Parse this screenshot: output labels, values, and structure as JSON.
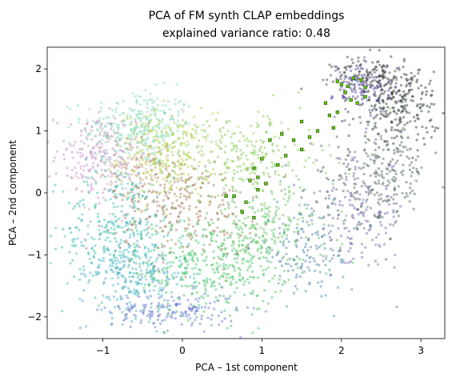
{
  "chart_data": {
    "type": "scatter",
    "title": "PCA of FM synth CLAP embeddings",
    "subtitle": "explained variance ratio: 0.48",
    "xlabel": "PCA – 1st component",
    "ylabel": "PCA – 2nd component",
    "xlim": [
      -1.7,
      3.3
    ],
    "ylim": [
      -2.35,
      2.35
    ],
    "xticks": [
      -1,
      0,
      1,
      2,
      3
    ],
    "yticks": [
      -2,
      -1,
      0,
      1,
      2
    ],
    "xtick_labels": [
      "−1",
      "0",
      "1",
      "2",
      "3"
    ],
    "ytick_labels": [
      "−2",
      "−1",
      "0",
      "1",
      "2"
    ],
    "grid": false,
    "legend": "none",
    "clusters": [
      {
        "color": "#7fd6b2",
        "center": [
          -0.55,
          1.05
        ],
        "spread": [
          0.35,
          0.3
        ],
        "weight": 1.2
      },
      {
        "color": "#b0cc3a",
        "center": [
          -0.2,
          0.6
        ],
        "spread": [
          0.3,
          0.35
        ],
        "weight": 1.0
      },
      {
        "color": "#c288c9",
        "center": [
          -1.1,
          0.6
        ],
        "spread": [
          0.25,
          0.35
        ],
        "weight": 0.6
      },
      {
        "color": "#c9a59a",
        "center": [
          -0.7,
          0.4
        ],
        "spread": [
          0.3,
          0.3
        ],
        "weight": 0.6
      },
      {
        "color": "#2fb8b0",
        "center": [
          -0.8,
          -0.6
        ],
        "spread": [
          0.35,
          0.55
        ],
        "weight": 1.3
      },
      {
        "color": "#3aa3c8",
        "center": [
          -0.6,
          -1.3
        ],
        "spread": [
          0.35,
          0.35
        ],
        "weight": 0.8
      },
      {
        "color": "#5a6fd0",
        "center": [
          -0.1,
          -1.9
        ],
        "spread": [
          0.4,
          0.15
        ],
        "weight": 0.6
      },
      {
        "color": "#34c05a",
        "center": [
          0.3,
          -1.2
        ],
        "spread": [
          0.45,
          0.4
        ],
        "weight": 1.3
      },
      {
        "color": "#a0704a",
        "center": [
          0.0,
          -0.2
        ],
        "spread": [
          0.45,
          0.4
        ],
        "weight": 1.0
      },
      {
        "color": "#7ec84a",
        "center": [
          0.8,
          0.6
        ],
        "spread": [
          0.5,
          0.35
        ],
        "weight": 0.9
      },
      {
        "color": "#4fbf4f",
        "center": [
          1.0,
          -0.6
        ],
        "spread": [
          0.45,
          0.4
        ],
        "weight": 1.0
      },
      {
        "color": "#3f7fa0",
        "center": [
          1.6,
          -0.9
        ],
        "spread": [
          0.35,
          0.35
        ],
        "weight": 0.6
      },
      {
        "color": "#6a5ca8",
        "center": [
          2.2,
          -0.3
        ],
        "spread": [
          0.3,
          0.45
        ],
        "weight": 0.7
      },
      {
        "color": "#3d5a46",
        "center": [
          2.5,
          0.3
        ],
        "spread": [
          0.3,
          0.4
        ],
        "weight": 0.8
      },
      {
        "color": "#1a2a22",
        "center": [
          2.7,
          1.4
        ],
        "spread": [
          0.25,
          0.3
        ],
        "weight": 0.9
      },
      {
        "color": "#4a3f9a",
        "center": [
          2.3,
          1.7
        ],
        "spread": [
          0.2,
          0.2
        ],
        "weight": 0.5
      },
      {
        "color": "#2c2c2c",
        "center": [
          2.4,
          1.9
        ],
        "spread": [
          0.25,
          0.15
        ],
        "weight": 0.5
      }
    ],
    "highlighted_points": [
      [
        1.95,
        1.8
      ],
      [
        2.0,
        1.75
      ],
      [
        2.08,
        1.72
      ],
      [
        2.15,
        1.85
      ],
      [
        2.25,
        1.82
      ],
      [
        2.3,
        1.55
      ],
      [
        2.2,
        1.45
      ],
      [
        2.12,
        1.5
      ],
      [
        1.95,
        1.3
      ],
      [
        1.8,
        1.45
      ],
      [
        1.5,
        1.15
      ],
      [
        1.7,
        1.0
      ],
      [
        1.9,
        1.05
      ],
      [
        1.6,
        0.9
      ],
      [
        1.4,
        0.85
      ],
      [
        1.1,
        0.85
      ],
      [
        1.3,
        0.6
      ],
      [
        1.0,
        0.55
      ],
      [
        0.9,
        0.4
      ],
      [
        0.85,
        0.2
      ],
      [
        1.2,
        0.45
      ],
      [
        0.95,
        0.05
      ],
      [
        0.8,
        -0.15
      ],
      [
        0.75,
        -0.3
      ],
      [
        0.9,
        -0.4
      ],
      [
        0.65,
        -0.05
      ],
      [
        0.55,
        -0.05
      ],
      [
        0.95,
        0.25
      ],
      [
        1.05,
        0.15
      ],
      [
        2.3,
        1.7
      ],
      [
        2.05,
        1.62
      ],
      [
        1.85,
        1.25
      ],
      [
        1.5,
        0.7
      ],
      [
        1.25,
        0.95
      ]
    ],
    "highlight_color": "#5fd400",
    "highlight_edge": "#1a3a00"
  }
}
